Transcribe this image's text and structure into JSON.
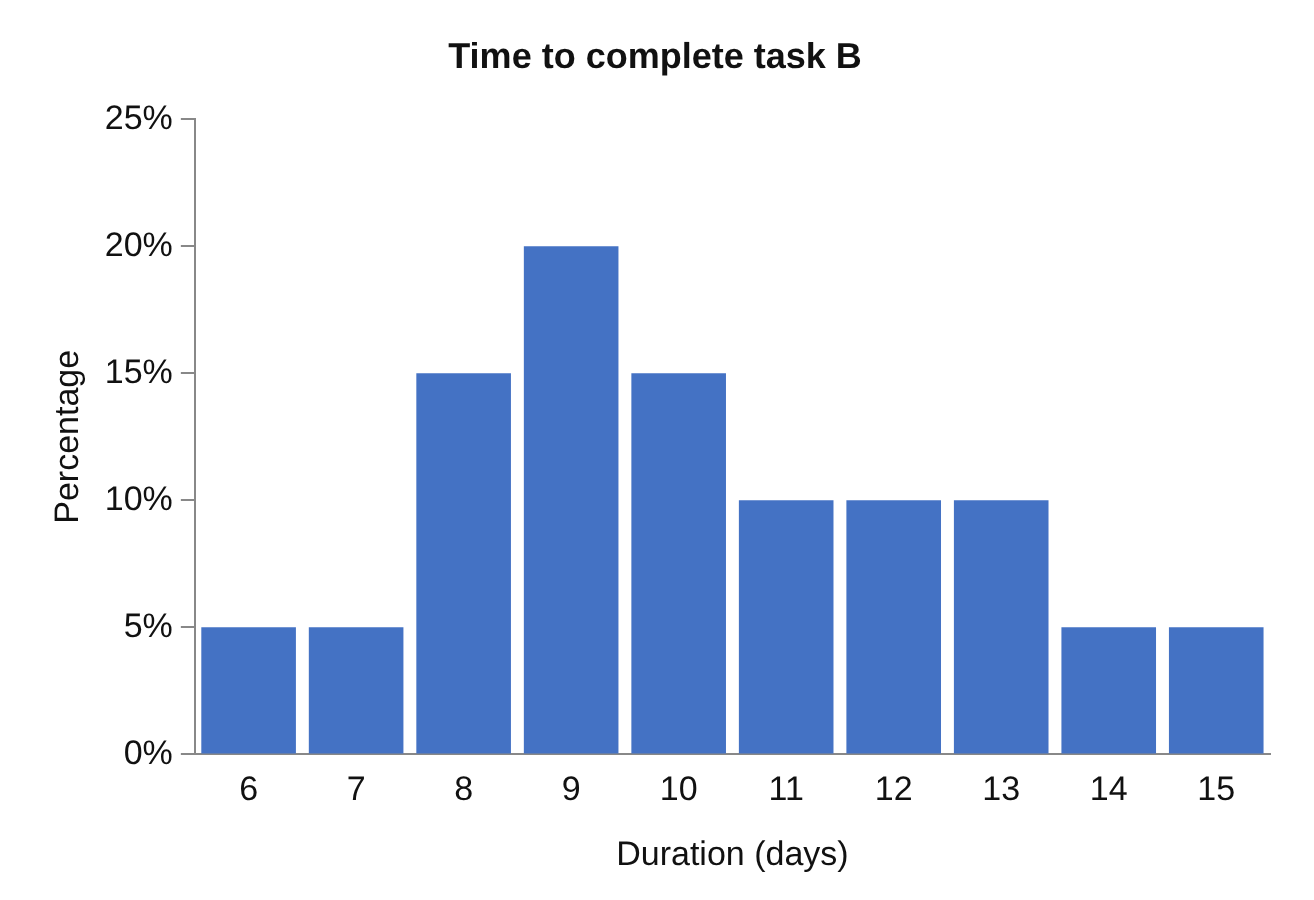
{
  "chart_data": {
    "type": "bar",
    "title": "Time to complete task B",
    "xlabel": "Duration (days)",
    "ylabel": "Percentage",
    "categories": [
      "6",
      "7",
      "8",
      "9",
      "10",
      "11",
      "12",
      "13",
      "14",
      "15"
    ],
    "values": [
      5,
      5,
      15,
      20,
      15,
      10,
      10,
      10,
      5,
      5
    ],
    "color": "#4472c4",
    "ylim": [
      0,
      25
    ],
    "yticks": [
      {
        "value": 0,
        "label": "0%"
      },
      {
        "value": 5,
        "label": "5%"
      },
      {
        "value": 10,
        "label": "10%"
      },
      {
        "value": 15,
        "label": "15%"
      },
      {
        "value": 20,
        "label": "20%"
      },
      {
        "value": 25,
        "label": "25%"
      }
    ],
    "grid": false,
    "legend": false
  }
}
